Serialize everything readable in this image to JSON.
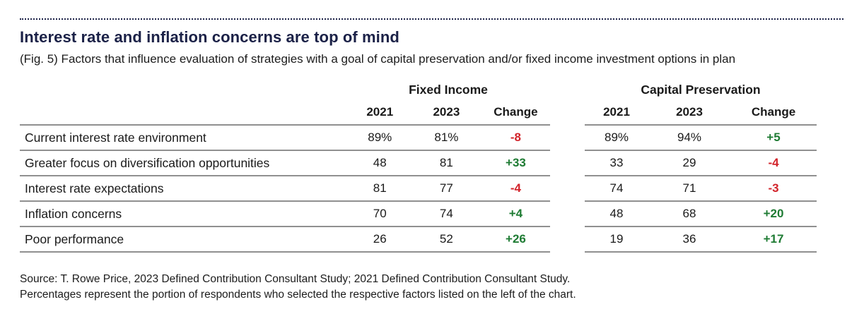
{
  "colors": {
    "brand_navy": "#1b2147",
    "positive": "#1e7b33",
    "negative": "#d2232a",
    "rule_gray": "#909090"
  },
  "header": {
    "title": "Interest rate and inflation concerns are top of mind",
    "subtitle": "(Fig. 5) Factors that influence evaluation of strategies with a goal of capital preservation and/or fixed income investment options in plan"
  },
  "table": {
    "group_left": "Fixed Income",
    "group_right": "Capital Preservation",
    "col_headers": [
      "2021",
      "2023",
      "Change"
    ],
    "rows": [
      {
        "label": "Current interest rate environment",
        "fi": [
          "89%",
          "81%",
          "-8"
        ],
        "cp": [
          "89%",
          "94%",
          "+5"
        ]
      },
      {
        "label": "Greater focus on diversification opportunities",
        "fi": [
          "48",
          "81",
          "+33"
        ],
        "cp": [
          "33",
          "29",
          "-4"
        ]
      },
      {
        "label": "Interest rate expectations",
        "fi": [
          "81",
          "77",
          "-4"
        ],
        "cp": [
          "74",
          "71",
          "-3"
        ]
      },
      {
        "label": "Inflation concerns",
        "fi": [
          "70",
          "74",
          "+4"
        ],
        "cp": [
          "48",
          "68",
          "+20"
        ]
      },
      {
        "label": "Poor performance",
        "fi": [
          "26",
          "52",
          "+26"
        ],
        "cp": [
          "19",
          "36",
          "+17"
        ]
      }
    ]
  },
  "footer": {
    "line1": "Source: T. Rowe Price, 2023 Defined Contribution Consultant Study; 2021 Defined Contribution Consultant Study.",
    "line2": "Percentages represent the portion of respondents who selected the respective factors listed on the left of the chart."
  },
  "chart_data": {
    "type": "table",
    "title": "Interest rate and inflation concerns are top of mind",
    "subtitle": "(Fig. 5) Factors that influence evaluation of strategies with a goal of capital preservation and/or fixed income investment options in plan",
    "column_groups": [
      "Fixed Income",
      "Capital Preservation"
    ],
    "columns": [
      "2021",
      "2023",
      "Change"
    ],
    "units": "percent of respondents",
    "rows": [
      {
        "factor": "Current interest rate environment",
        "fixed_income": {
          "y2021": 89,
          "y2023": 81,
          "change": -8
        },
        "capital_preservation": {
          "y2021": 89,
          "y2023": 94,
          "change": 5
        }
      },
      {
        "factor": "Greater focus on diversification opportunities",
        "fixed_income": {
          "y2021": 48,
          "y2023": 81,
          "change": 33
        },
        "capital_preservation": {
          "y2021": 33,
          "y2023": 29,
          "change": -4
        }
      },
      {
        "factor": "Interest rate expectations",
        "fixed_income": {
          "y2021": 81,
          "y2023": 77,
          "change": -4
        },
        "capital_preservation": {
          "y2021": 74,
          "y2023": 71,
          "change": -3
        }
      },
      {
        "factor": "Inflation concerns",
        "fixed_income": {
          "y2021": 70,
          "y2023": 74,
          "change": 4
        },
        "capital_preservation": {
          "y2021": 48,
          "y2023": 68,
          "change": 20
        }
      },
      {
        "factor": "Poor performance",
        "fixed_income": {
          "y2021": 26,
          "y2023": 52,
          "change": 26
        },
        "capital_preservation": {
          "y2021": 19,
          "y2023": 36,
          "change": 17
        }
      }
    ]
  }
}
